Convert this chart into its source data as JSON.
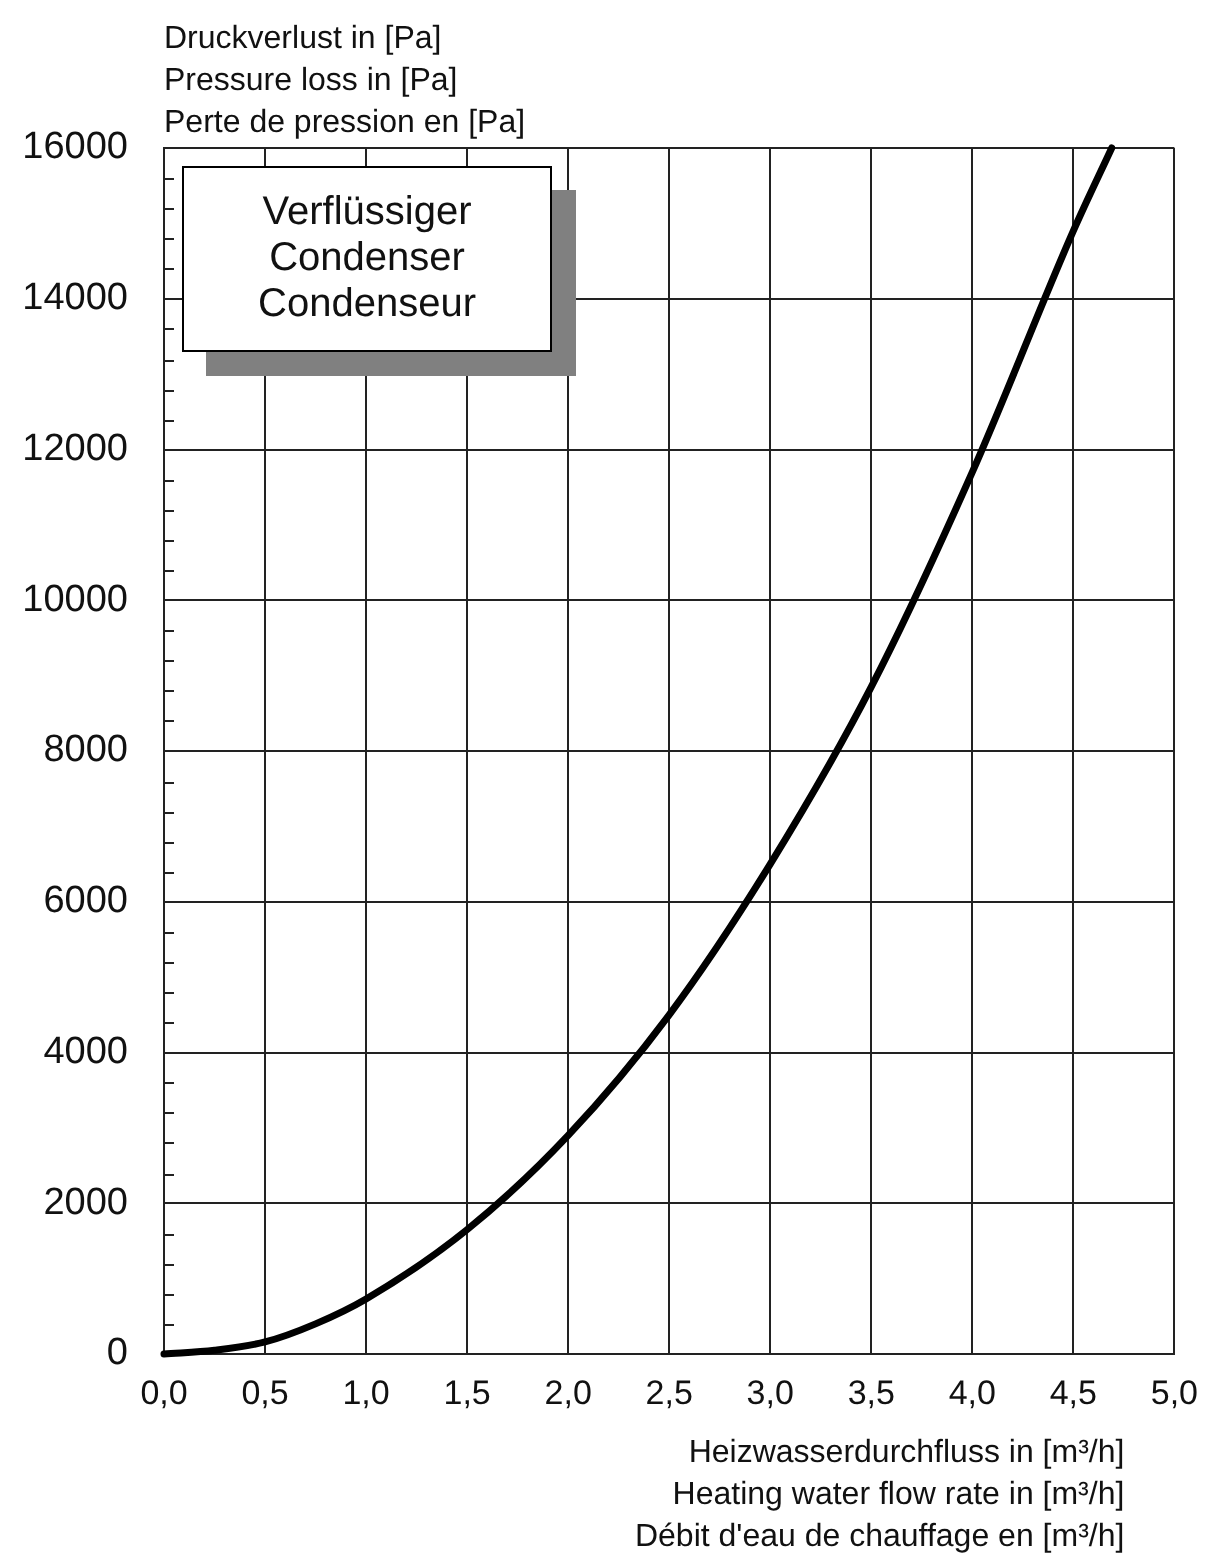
{
  "chart_data": {
    "type": "line",
    "ylabel": "Druckverlust in [Pa]\nPressure loss in [Pa]\nPerte de pression en [Pa]",
    "xlabel": "Heizwasserdurchfluss in [m³/h]\nHeating water flow rate in [m³/h]\nDébit d'eau de chauffage en [m³/h]",
    "annotations": [
      "Verflüssiger\nCondenser\nCondenseur"
    ],
    "x": [
      0,
      0.25,
      0.5,
      0.75,
      1,
      1.5,
      2,
      2.5,
      3,
      3.5,
      4,
      4.5,
      4.69
    ],
    "series": [
      {
        "color": "#000000",
        "values": [
          0,
          50,
          160,
          400,
          730,
          1650,
          2900,
          4500,
          6500,
          8850,
          11700,
          14900,
          16000
        ]
      }
    ],
    "xlim": [
      0,
      5
    ],
    "xticks": [
      {
        "value": 0,
        "label": "0,0"
      },
      {
        "value": 0.5,
        "label": "0,5"
      },
      {
        "value": 1,
        "label": "1,0"
      },
      {
        "value": 1.5,
        "label": "1,5"
      },
      {
        "value": 2,
        "label": "2,0"
      },
      {
        "value": 2.5,
        "label": "2,5"
      },
      {
        "value": 3,
        "label": "3,0"
      },
      {
        "value": 3.5,
        "label": "3,5"
      },
      {
        "value": 4,
        "label": "4,0"
      },
      {
        "value": 4.5,
        "label": "4,5"
      },
      {
        "value": 5,
        "label": "5,0"
      }
    ],
    "ylim": [
      0,
      16000
    ],
    "yticks": [
      0,
      {
        "value": 400,
        "label": null
      },
      {
        "value": 800,
        "label": null
      },
      {
        "value": 1200,
        "label": null
      },
      {
        "value": 1600,
        "label": null
      },
      2000,
      {
        "value": 2400,
        "label": null
      },
      {
        "value": 2800,
        "label": null
      },
      {
        "value": 3200,
        "label": null
      },
      {
        "value": 3600,
        "label": null
      },
      4000,
      {
        "value": 4400,
        "label": null
      },
      {
        "value": 4800,
        "label": null
      },
      {
        "value": 5200,
        "label": null
      },
      {
        "value": 5600,
        "label": null
      },
      6000,
      {
        "value": 6400,
        "label": null
      },
      {
        "value": 6800,
        "label": null
      },
      {
        "value": 7200,
        "label": null
      },
      {
        "value": 7600,
        "label": null
      },
      8000,
      {
        "value": 8400,
        "label": null
      },
      {
        "value": 8800,
        "label": null
      },
      {
        "value": 9200,
        "label": null
      },
      {
        "value": 9600,
        "label": null
      },
      10000,
      {
        "value": 10400,
        "label": null
      },
      {
        "value": 10800,
        "label": null
      },
      {
        "value": 11200,
        "label": null
      },
      {
        "value": 11600,
        "label": null
      },
      12000,
      {
        "value": 12400,
        "label": null
      },
      {
        "value": 12800,
        "label": null
      },
      {
        "value": 13200,
        "label": null
      },
      {
        "value": 13600,
        "label": null
      },
      14000,
      {
        "value": 14400,
        "label": null
      },
      {
        "value": 14800,
        "label": null
      },
      {
        "value": 15200,
        "label": null
      },
      {
        "value": 15600,
        "label": null
      },
      16000
    ],
    "grid": true,
    "marker": "none",
    "line_style": "solid"
  }
}
